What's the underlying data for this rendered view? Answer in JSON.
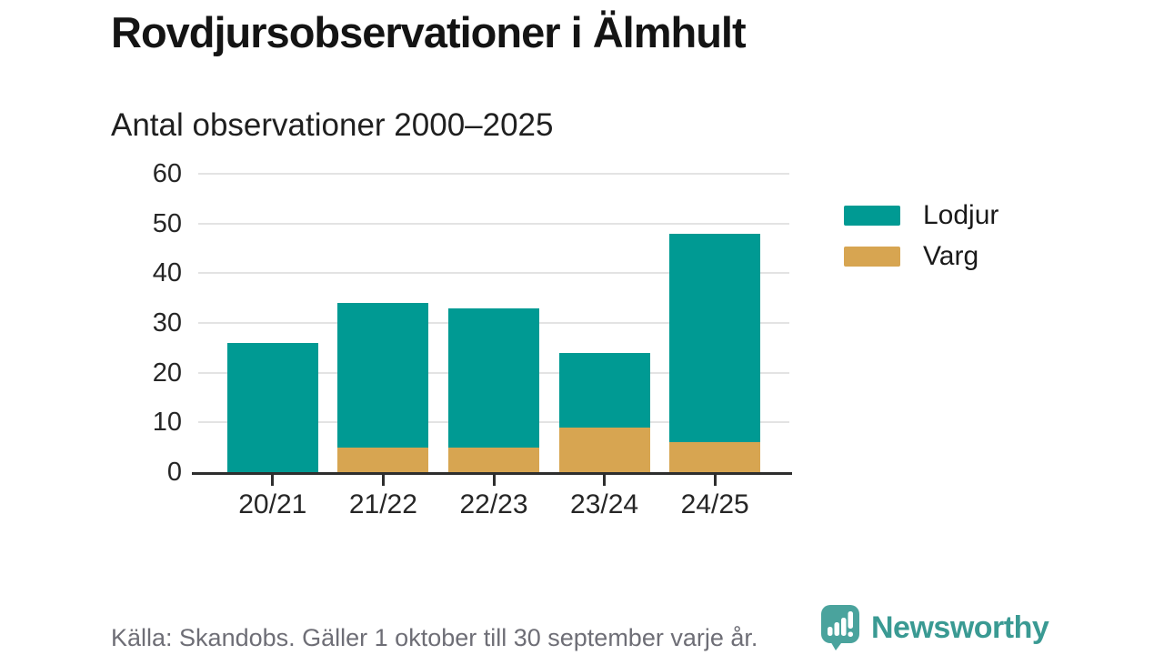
{
  "chart_data": {
    "type": "bar",
    "stacked": true,
    "title": "Rovdjursobservationer i Älmhult",
    "subtitle": "Antal observationer 2000–2025",
    "categories": [
      "20/21",
      "21/22",
      "22/23",
      "23/24",
      "24/25"
    ],
    "series": [
      {
        "name": "Lodjur",
        "color": "#009a93",
        "values": [
          26,
          29,
          28,
          15,
          42
        ]
      },
      {
        "name": "Varg",
        "color": "#d7a551",
        "values": [
          0,
          5,
          5,
          9,
          6
        ]
      }
    ],
    "stack_totals": [
      26,
      34,
      33,
      24,
      48
    ],
    "xlabel": "",
    "ylabel": "",
    "ylim": [
      0,
      60
    ],
    "yticks": [
      0,
      10,
      20,
      30,
      40,
      50,
      60
    ],
    "grid": "horizontal",
    "legend_position": "right",
    "gridline_color": "#e3e3e3",
    "axis_color": "#2e2e2e"
  },
  "footer": {
    "source": "Källa: Skandobs. Gäller 1 oktober till 30 september varje år.",
    "brand": "Newsworthy",
    "brand_color": "#3a9a93",
    "logo_icon": "bar-chart-speech-bubble"
  }
}
